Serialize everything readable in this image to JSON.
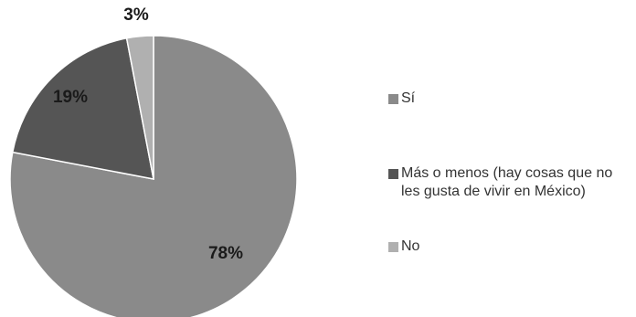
{
  "chart_data": {
    "type": "pie",
    "title": "",
    "categories": [
      "Sí",
      "Más o menos (hay cosas que no les gusta de vivir en México)",
      "No"
    ],
    "values": [
      78,
      19,
      3
    ],
    "data_labels": [
      "78%",
      "19%",
      "3%"
    ],
    "colors": [
      "#8a8a8a",
      "#555555",
      "#b0b0b0"
    ],
    "start_angle_deg": 0,
    "direction": "clockwise",
    "legend_position": "right"
  }
}
